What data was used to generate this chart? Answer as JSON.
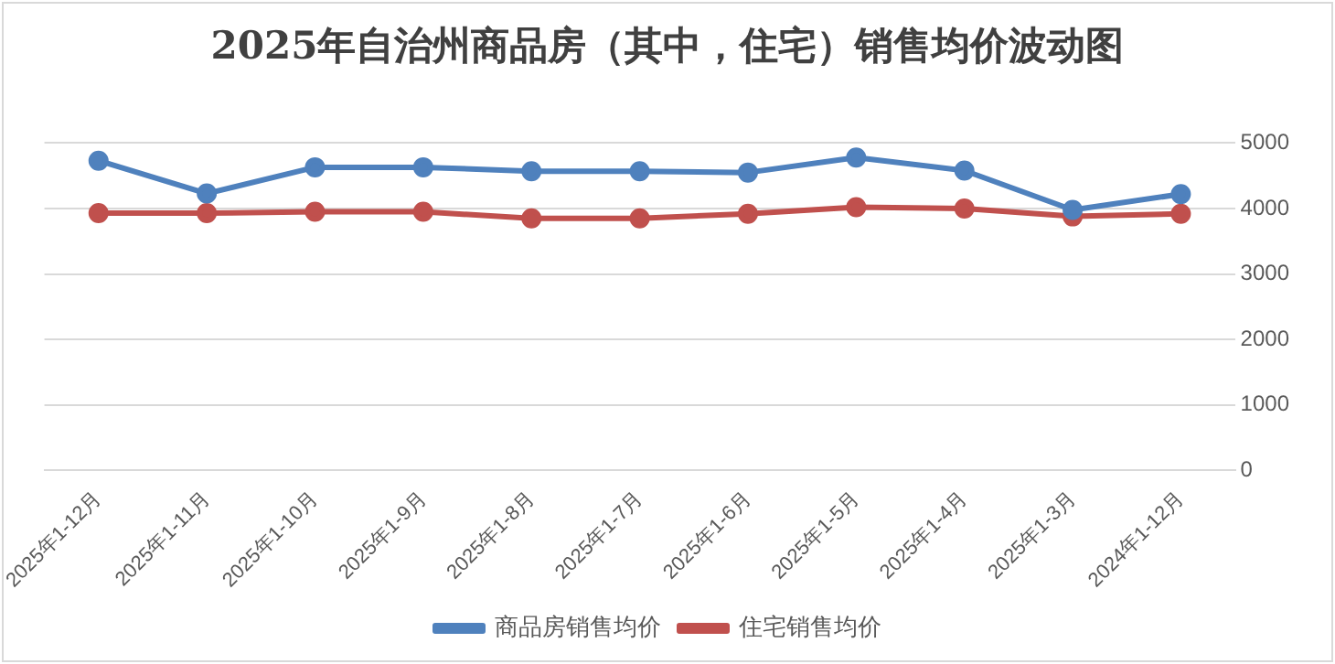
{
  "chart_data": {
    "type": "line",
    "title": "2025年自治州商品房（其中，住宅）销售均价波动图",
    "categories": [
      "2025年1-12月",
      "2025年1-11月",
      "2025年1-10月",
      "2025年1-9月",
      "2025年1-8月",
      "2025年1-7月",
      "2025年1-6月",
      "2025年1-5月",
      "2025年1-4月",
      "2025年1-3月",
      "2024年1-12月"
    ],
    "series": [
      {
        "name": "住宅销售均价",
        "color": "#c0504d",
        "values": [
          3930,
          3930,
          3950,
          3950,
          3850,
          3850,
          3920,
          4020,
          4000,
          3880,
          3920
        ]
      },
      {
        "name": "商品房销售均价",
        "color": "#4f81bd",
        "values": [
          4730,
          4230,
          4630,
          4630,
          4570,
          4570,
          4550,
          4780,
          4580,
          3980,
          4220
        ]
      }
    ],
    "ylim": [
      0,
      5000
    ],
    "yticks": [
      0,
      1000,
      2000,
      3000,
      4000,
      5000
    ],
    "grid": "y",
    "legend": "bottom",
    "marker": "circle",
    "line_style": "solid"
  }
}
